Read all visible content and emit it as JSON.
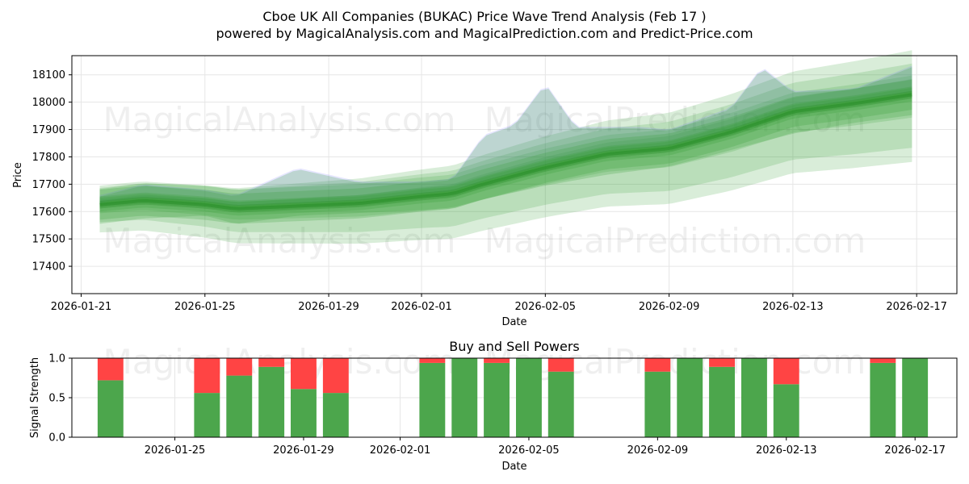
{
  "chart_data": [
    {
      "type": "area",
      "title": "Cboe UK All Companies (BUKAC) Price Wave Trend Analysis (Feb 17 )",
      "subtitle": "powered by MagicalAnalysis.com and MagicalPrediction.com and Predict-Price.com",
      "xlabel": "Date",
      "ylabel": "Price",
      "x_ticks": [
        "2026-01-21",
        "2026-01-25",
        "2026-01-29",
        "2026-02-01",
        "2026-02-05",
        "2026-02-09",
        "2026-02-13",
        "2026-02-17"
      ],
      "x_tick_day_offsets": [
        0,
        4,
        8,
        11,
        15,
        19,
        23,
        27
      ],
      "xlim_days": [
        -0.3,
        28.3
      ],
      "y_ticks": [
        17400,
        17500,
        17600,
        17700,
        17800,
        17900,
        18000,
        18100
      ],
      "ylim": [
        17300,
        18170
      ],
      "grid": true,
      "watermarks": [
        "MagicalAnalysis.com",
        "MagicalPrediction.com"
      ],
      "series": [
        {
          "name": "trend",
          "day_offsets": [
            0.6,
            2,
            4,
            5,
            7,
            9,
            11,
            12,
            13,
            15,
            17,
            19,
            21,
            23,
            25,
            27
          ],
          "values": [
            17625,
            17640,
            17625,
            17610,
            17620,
            17630,
            17655,
            17665,
            17700,
            17760,
            17810,
            17830,
            17890,
            17965,
            17995,
            18030
          ]
        },
        {
          "name": "wave-high",
          "day_offsets": [
            0.6,
            2,
            4,
            5,
            7,
            9,
            11,
            12,
            13,
            14,
            15,
            16,
            18,
            19,
            21,
            22,
            23,
            25,
            27
          ],
          "values": [
            17650,
            17690,
            17670,
            17650,
            17750,
            17700,
            17700,
            17710,
            17870,
            17910,
            18060,
            17900,
            17900,
            17890,
            17970,
            18120,
            18030,
            18040,
            18130
          ]
        },
        {
          "name": "wave-low",
          "day_offsets": [
            0.6,
            2,
            4,
            5,
            7,
            9,
            11,
            12,
            13,
            15,
            17,
            19,
            21,
            23,
            25,
            27
          ],
          "values": [
            17560,
            17580,
            17590,
            17560,
            17590,
            17600,
            17610,
            17620,
            17650,
            17700,
            17740,
            17770,
            17830,
            17890,
            17930,
            17960
          ]
        }
      ]
    },
    {
      "type": "bar",
      "title": "Buy and Sell Powers",
      "xlabel": "Date",
      "ylabel": "Signal Strength",
      "x_ticks": [
        "2026-01-25",
        "2026-01-29",
        "2026-02-01",
        "2026-02-05",
        "2026-02-09",
        "2026-02-13",
        "2026-02-17"
      ],
      "x_tick_day_offsets": [
        4,
        8,
        11,
        15,
        19,
        23,
        27
      ],
      "xlim_days": [
        0.8,
        28.3
      ],
      "y_ticks": [
        "0.0",
        "0.5",
        "1.0"
      ],
      "ylim": [
        0,
        1
      ],
      "bar_day_offsets": [
        2,
        5,
        6,
        7,
        8,
        9,
        12,
        13,
        14,
        15,
        16,
        19,
        20,
        21,
        22,
        23,
        26,
        27
      ],
      "series": [
        {
          "name": "buy",
          "color": "#4ca64c",
          "values": [
            0.72,
            0.56,
            0.78,
            0.89,
            0.61,
            0.56,
            0.94,
            1.0,
            0.94,
            1.0,
            0.83,
            0.83,
            1.0,
            0.89,
            1.0,
            0.67,
            0.94,
            1.0
          ]
        },
        {
          "name": "sell",
          "color": "#ff4444",
          "values": [
            0.28,
            0.44,
            0.22,
            0.11,
            0.39,
            0.44,
            0.06,
            0.0,
            0.06,
            0.0,
            0.17,
            0.17,
            0.0,
            0.11,
            0.0,
            0.33,
            0.06,
            0.0
          ]
        }
      ]
    }
  ]
}
